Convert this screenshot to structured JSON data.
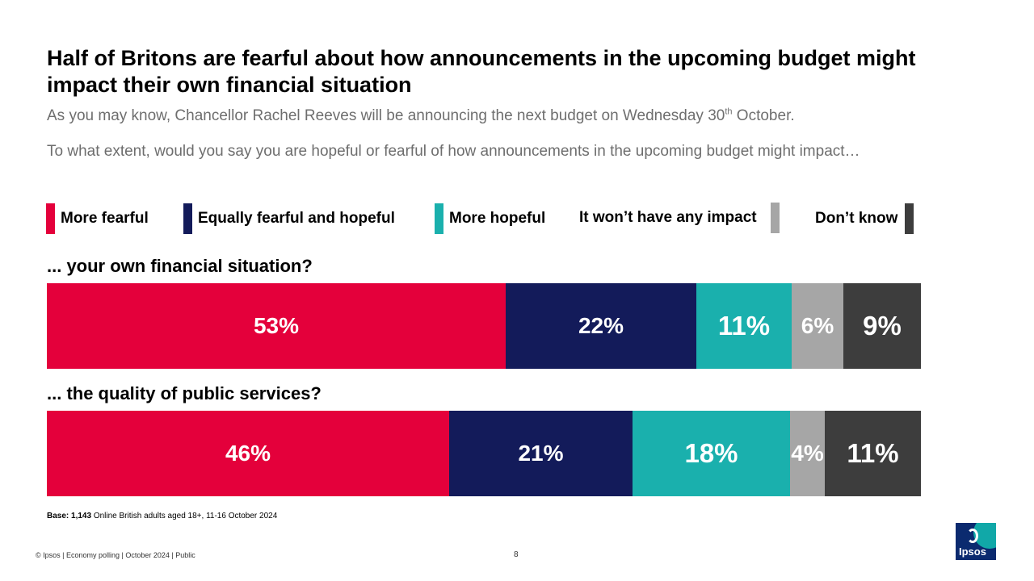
{
  "slide": {
    "title": "Half of Britons are fearful about how announcements in the upcoming budget might impact their own financial situation",
    "subtitle_main": "As you may know, Chancellor Rachel Reeves will be announcing the next budget on Wednesday 30",
    "subtitle_sup": "th",
    "subtitle_end": " October.",
    "question": "To what extent, would you say you are hopeful or fearful of how announcements in the upcoming budget might impact…",
    "base_label": "Base: 1,143",
    "base_text": " Online British adults aged 18+, 11-16 October 2024",
    "footer": "© Ipsos | Economy polling | October 2024 | Public",
    "page_number": "8",
    "logo_text": "Ipsos"
  },
  "colors": {
    "more_fearful": "#e4003b",
    "equally": "#131b5a",
    "more_hopeful": "#1ab0ad",
    "no_impact": "#a6a6a6",
    "dont_know": "#3d3d3d"
  },
  "chart_data": {
    "type": "bar",
    "orientation": "horizontal",
    "stacked": true,
    "categories": [
      "... your own financial situation?",
      "... the quality of public services?"
    ],
    "series": [
      {
        "name": "More fearful",
        "values": [
          53,
          46
        ]
      },
      {
        "name": "Equally fearful and hopeful",
        "values": [
          22,
          21
        ]
      },
      {
        "name": "More hopeful",
        "values": [
          11,
          18
        ]
      },
      {
        "name": "It won’t have any impact",
        "values": [
          6,
          4
        ]
      },
      {
        "name": "Don’t know",
        "values": [
          9,
          11
        ]
      }
    ],
    "legend_position": "top",
    "unit": "%"
  }
}
